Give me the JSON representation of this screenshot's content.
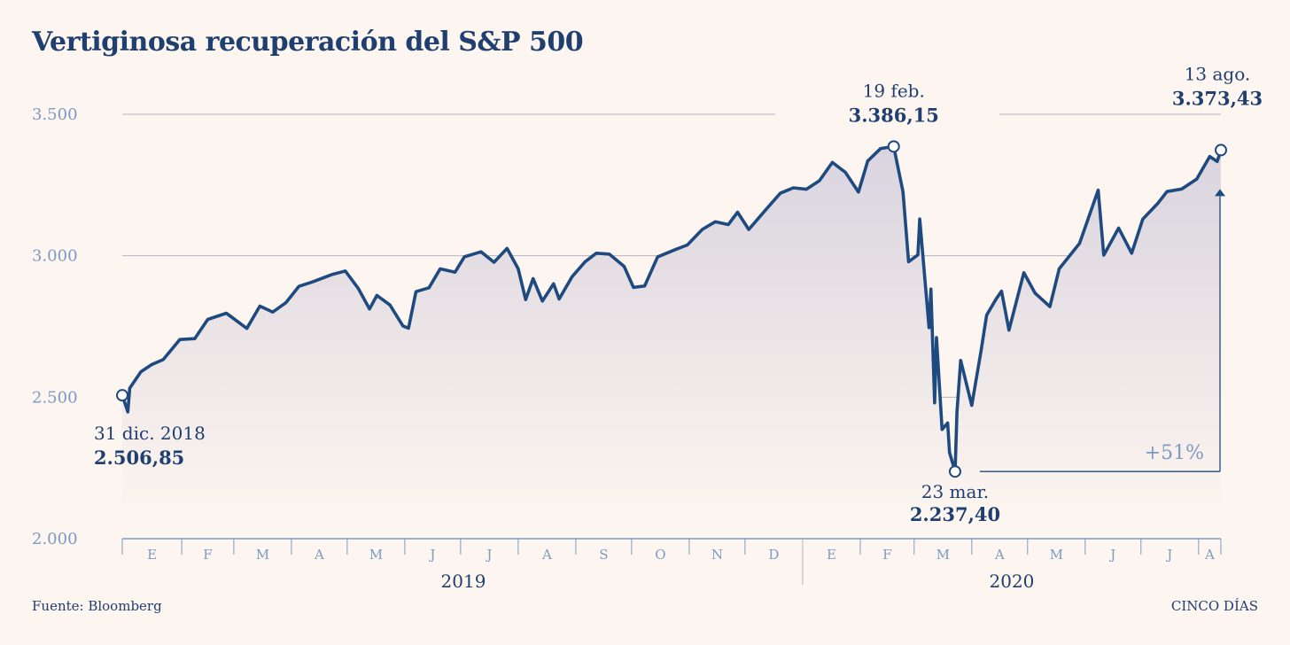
{
  "title": "Vertiginosa recuperación del S&P 500",
  "source": "Fuente: Bloomberg",
  "brand": "CINCO DÍAS",
  "colors": {
    "background": "#fdf5ef",
    "line": "#1f4a80",
    "text": "#1f3f70",
    "axis_text": "#7c9bc2",
    "grid": "#b9b3c3",
    "area_top": "#d9d4df",
    "area_bottom": "#fdf5ef"
  },
  "chart_data": {
    "type": "line",
    "title": "Vertiginosa recuperación del S&P 500",
    "xlabel": "",
    "ylabel": "",
    "ylim": [
      2000,
      3500
    ],
    "yticks": [
      {
        "value": 2000,
        "label": "2.000"
      },
      {
        "value": 2500,
        "label": "2.500"
      },
      {
        "value": 3000,
        "label": "3.000"
      },
      {
        "value": 3500,
        "label": "3.500"
      }
    ],
    "grid": true,
    "area_fill": true,
    "xlim": [
      "2018-12-31",
      "2020-08-13"
    ],
    "month_ticks": [
      {
        "label": "E",
        "date": "2019-01"
      },
      {
        "label": "F",
        "date": "2019-02"
      },
      {
        "label": "M",
        "date": "2019-03"
      },
      {
        "label": "A",
        "date": "2019-04"
      },
      {
        "label": "M",
        "date": "2019-05"
      },
      {
        "label": "J",
        "date": "2019-06"
      },
      {
        "label": "J",
        "date": "2019-07"
      },
      {
        "label": "A",
        "date": "2019-08"
      },
      {
        "label": "S",
        "date": "2019-09"
      },
      {
        "label": "O",
        "date": "2019-10"
      },
      {
        "label": "N",
        "date": "2019-11"
      },
      {
        "label": "D",
        "date": "2019-12"
      },
      {
        "label": "E",
        "date": "2020-01"
      },
      {
        "label": "F",
        "date": "2020-02"
      },
      {
        "label": "M",
        "date": "2020-03"
      },
      {
        "label": "A",
        "date": "2020-04"
      },
      {
        "label": "M",
        "date": "2020-05"
      },
      {
        "label": "J",
        "date": "2020-06"
      },
      {
        "label": "J",
        "date": "2020-07"
      },
      {
        "label": "A",
        "date": "2020-08"
      }
    ],
    "years": [
      {
        "label": "2019",
        "from": "2019-01",
        "to": "2019-12"
      },
      {
        "label": "2020",
        "from": "2020-01",
        "to": "2020-08"
      }
    ],
    "series": [
      {
        "points": [
          [
            "2018-12-31",
            2507
          ],
          [
            "2019-01-03",
            2448
          ],
          [
            "2019-01-04",
            2532
          ],
          [
            "2019-01-10",
            2590
          ],
          [
            "2019-01-16",
            2616
          ],
          [
            "2019-01-22",
            2633
          ],
          [
            "2019-01-31",
            2704
          ],
          [
            "2019-02-08",
            2707
          ],
          [
            "2019-02-15",
            2775
          ],
          [
            "2019-02-25",
            2797
          ],
          [
            "2019-03-08",
            2743
          ],
          [
            "2019-03-15",
            2822
          ],
          [
            "2019-03-22",
            2801
          ],
          [
            "2019-03-29",
            2834
          ],
          [
            "2019-04-05",
            2892
          ],
          [
            "2019-04-12",
            2907
          ],
          [
            "2019-04-23",
            2934
          ],
          [
            "2019-04-30",
            2946
          ],
          [
            "2019-05-07",
            2884
          ],
          [
            "2019-05-13",
            2812
          ],
          [
            "2019-05-17",
            2860
          ],
          [
            "2019-05-24",
            2826
          ],
          [
            "2019-05-31",
            2752
          ],
          [
            "2019-06-03",
            2744
          ],
          [
            "2019-06-07",
            2873
          ],
          [
            "2019-06-14",
            2887
          ],
          [
            "2019-06-20",
            2954
          ],
          [
            "2019-06-28",
            2942
          ],
          [
            "2019-07-03",
            2996
          ],
          [
            "2019-07-12",
            3014
          ],
          [
            "2019-07-19",
            2977
          ],
          [
            "2019-07-26",
            3026
          ],
          [
            "2019-08-01",
            2954
          ],
          [
            "2019-08-05",
            2845
          ],
          [
            "2019-08-09",
            2919
          ],
          [
            "2019-08-14",
            2840
          ],
          [
            "2019-08-20",
            2901
          ],
          [
            "2019-08-23",
            2847
          ],
          [
            "2019-08-30",
            2926
          ],
          [
            "2019-09-06",
            2979
          ],
          [
            "2019-09-12",
            3009
          ],
          [
            "2019-09-19",
            3006
          ],
          [
            "2019-09-27",
            2962
          ],
          [
            "2019-10-02",
            2888
          ],
          [
            "2019-10-08",
            2893
          ],
          [
            "2019-10-15",
            2996
          ],
          [
            "2019-10-25",
            3023
          ],
          [
            "2019-10-31",
            3038
          ],
          [
            "2019-11-08",
            3093
          ],
          [
            "2019-11-15",
            3120
          ],
          [
            "2019-11-22",
            3110
          ],
          [
            "2019-11-27",
            3154
          ],
          [
            "2019-12-03",
            3093
          ],
          [
            "2019-12-13",
            3169
          ],
          [
            "2019-12-20",
            3221
          ],
          [
            "2019-12-27",
            3240
          ],
          [
            "2020-01-03",
            3235
          ],
          [
            "2020-01-10",
            3265
          ],
          [
            "2020-01-17",
            3330
          ],
          [
            "2020-01-24",
            3295
          ],
          [
            "2020-01-31",
            3225
          ],
          [
            "2020-02-05",
            3335
          ],
          [
            "2020-02-12",
            3379
          ],
          [
            "2020-02-19",
            3386
          ],
          [
            "2020-02-24",
            3226
          ],
          [
            "2020-02-27",
            2979
          ],
          [
            "2020-03-03",
            3003
          ],
          [
            "2020-03-04",
            3130
          ],
          [
            "2020-03-09",
            2746
          ],
          [
            "2020-03-10",
            2882
          ],
          [
            "2020-03-12",
            2480
          ],
          [
            "2020-03-13",
            2711
          ],
          [
            "2020-03-16",
            2386
          ],
          [
            "2020-03-19",
            2409
          ],
          [
            "2020-03-20",
            2305
          ],
          [
            "2020-03-23",
            2237
          ],
          [
            "2020-03-24",
            2447
          ],
          [
            "2020-03-26",
            2630
          ],
          [
            "2020-04-01",
            2471
          ],
          [
            "2020-04-06",
            2664
          ],
          [
            "2020-04-09",
            2790
          ],
          [
            "2020-04-14",
            2846
          ],
          [
            "2020-04-17",
            2875
          ],
          [
            "2020-04-21",
            2737
          ],
          [
            "2020-04-29",
            2940
          ],
          [
            "2020-05-05",
            2868
          ],
          [
            "2020-05-13",
            2820
          ],
          [
            "2020-05-18",
            2954
          ],
          [
            "2020-05-29",
            3044
          ],
          [
            "2020-06-08",
            3232
          ],
          [
            "2020-06-11",
            3002
          ],
          [
            "2020-06-19",
            3098
          ],
          [
            "2020-06-26",
            3009
          ],
          [
            "2020-07-02",
            3130
          ],
          [
            "2020-07-10",
            3185
          ],
          [
            "2020-07-15",
            3227
          ],
          [
            "2020-07-23",
            3236
          ],
          [
            "2020-07-31",
            3271
          ],
          [
            "2020-08-07",
            3351
          ],
          [
            "2020-08-11",
            3333
          ],
          [
            "2020-08-13",
            3373
          ]
        ]
      }
    ],
    "annotations": [
      {
        "date": "2018-12-31",
        "value": 2506.85,
        "date_label": "31 dic. 2018",
        "value_label": "2.506,85",
        "position": "below"
      },
      {
        "date": "2020-02-19",
        "value": 3386.15,
        "date_label": "19 feb.",
        "value_label": "3.386,15",
        "position": "above"
      },
      {
        "date": "2020-03-23",
        "value": 2237.4,
        "date_label": "23 mar.",
        "value_label": "2.237,40",
        "position": "below"
      },
      {
        "date": "2020-08-13",
        "value": 3373.43,
        "date_label": "13 ago.",
        "value_label": "3.373,43",
        "position": "above"
      }
    ],
    "change": {
      "label": "+51%",
      "from": "2020-03-23",
      "to": "2020-08-13"
    }
  }
}
